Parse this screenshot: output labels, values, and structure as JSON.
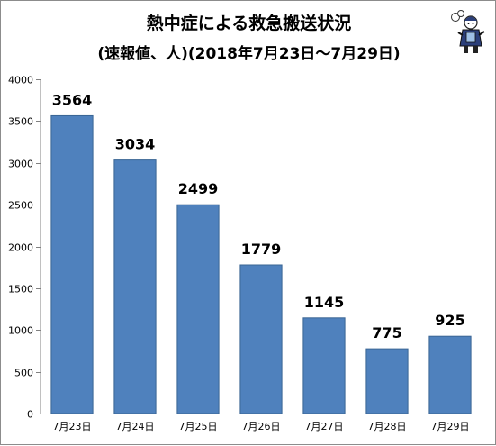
{
  "chart_data": {
    "type": "bar",
    "title": "熱中症による救急搬送状況",
    "subtitle": "(速報値、人)(2018年7月23日〜7月29日)",
    "categories": [
      "7月23日",
      "7月24日",
      "7月25日",
      "7月26日",
      "7月27日",
      "7月28日",
      "7月29日"
    ],
    "values": [
      3564,
      3034,
      2499,
      1779,
      1145,
      775,
      925
    ],
    "ylim": [
      0,
      4000
    ],
    "yticks": [
      0,
      500,
      1000,
      1500,
      2000,
      2500,
      3000,
      3500,
      4000
    ],
    "grid": false,
    "legend": "none",
    "bar_color": "#4f81bd",
    "bar_edge_color": "#3a6594"
  }
}
